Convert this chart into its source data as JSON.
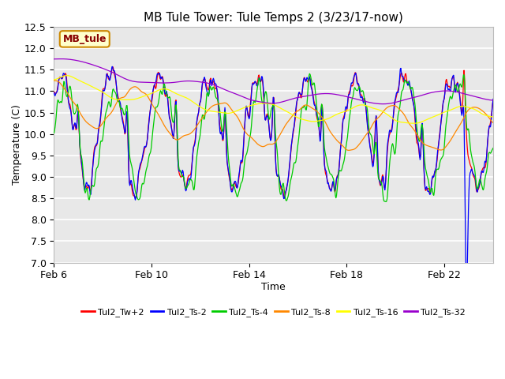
{
  "title": "MB Tule Tower: Tule Temps 2 (3/23/17-now)",
  "xlabel": "Time",
  "ylabel": "Temperature (C)",
  "ylim": [
    7.0,
    12.5
  ],
  "xlim": [
    0,
    18
  ],
  "x_tick_positions": [
    0,
    4,
    8,
    12,
    16
  ],
  "x_tick_labels": [
    "Feb 6",
    "Feb 10",
    "Feb 14",
    "Feb 18",
    "Feb 22"
  ],
  "y_tick_positions": [
    7.0,
    7.5,
    8.0,
    8.5,
    9.0,
    9.5,
    10.0,
    10.5,
    11.0,
    11.5,
    12.0,
    12.5
  ],
  "legend_labels": [
    "Tul2_Tw+2",
    "Tul2_Ts-2",
    "Tul2_Ts-4",
    "Tul2_Ts-8",
    "Tul2_Ts-16",
    "Tul2_Ts-32"
  ],
  "line_colors": [
    "#ff0000",
    "#0000ff",
    "#00cc00",
    "#ff8800",
    "#ffff00",
    "#9900cc"
  ],
  "watermark_text": "MB_tule",
  "watermark_bg": "#ffffcc",
  "watermark_border": "#cc8800",
  "plot_bg_color": "#e8e8e8",
  "grid_color": "#ffffff",
  "n_points": 800,
  "seed": 7
}
